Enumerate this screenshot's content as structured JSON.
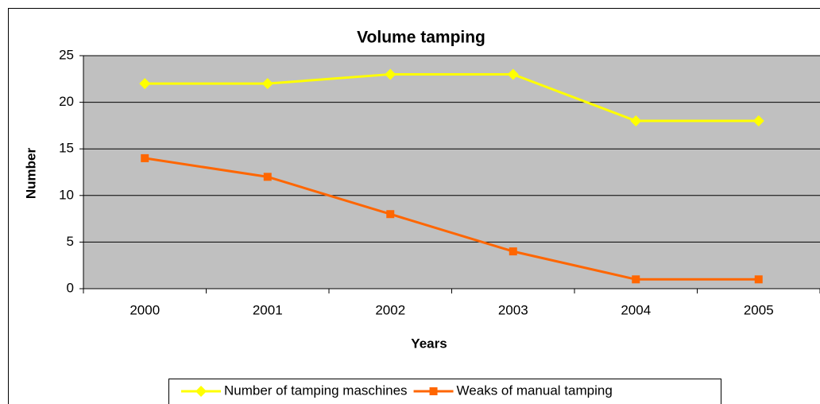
{
  "chart_data": {
    "type": "line",
    "title": "Volume tamping",
    "x_label": "Years",
    "y_label": "Number",
    "categories": [
      "2000",
      "2001",
      "2002",
      "2003",
      "2004",
      "2005"
    ],
    "series": [
      {
        "name": "Number of tamping maschines",
        "color": "#ffff00",
        "marker": "diamond",
        "values": [
          22,
          22,
          23,
          23,
          18,
          18
        ]
      },
      {
        "name": "Weaks of manual tamping",
        "color": "#ff6600",
        "marker": "square",
        "values": [
          14,
          12,
          8,
          4,
          1,
          1
        ]
      }
    ],
    "ylim": [
      0,
      25
    ],
    "yticks": [
      0,
      5,
      10,
      15,
      20,
      25
    ],
    "grid": true,
    "legend": "bottom"
  }
}
